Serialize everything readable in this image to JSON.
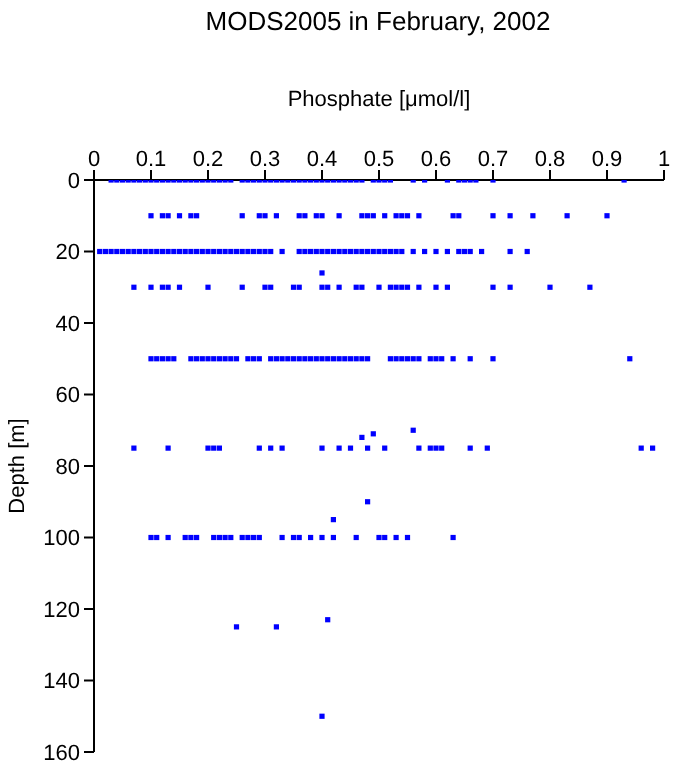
{
  "chart_data": {
    "type": "scatter",
    "title": "MODS2005 in February, 2002",
    "xlabel": "Phosphate [μmol/l]",
    "ylabel": "Depth [m]",
    "xlim": [
      0,
      1
    ],
    "xticks": [
      0,
      0.1,
      0.2,
      0.3,
      0.4,
      0.5,
      0.6,
      0.7,
      0.8,
      0.9,
      1
    ],
    "ylim": [
      160,
      0
    ],
    "yticks": [
      0,
      20,
      40,
      60,
      80,
      100,
      120,
      140,
      160
    ],
    "grid": false,
    "marker": "square",
    "series": [
      {
        "color": "#0000ff",
        "x": [
          0.03,
          0.04,
          0.05,
          0.06,
          0.07,
          0.08,
          0.09,
          0.1,
          0.11,
          0.12,
          0.13,
          0.14,
          0.15,
          0.16,
          0.17,
          0.18,
          0.19,
          0.2,
          0.21,
          0.22,
          0.23,
          0.24,
          0.26,
          0.27,
          0.28,
          0.29,
          0.3,
          0.31,
          0.32,
          0.33,
          0.34,
          0.35,
          0.36,
          0.37,
          0.38,
          0.39,
          0.4,
          0.41,
          0.42,
          0.43,
          0.44,
          0.45,
          0.46,
          0.47,
          0.49,
          0.5,
          0.51,
          0.52,
          0.56,
          0.58,
          0.62,
          0.64,
          0.65,
          0.66,
          0.67,
          0.7,
          0.93
        ],
        "values": [
          0,
          0,
          0,
          0,
          0,
          0,
          0,
          0,
          0,
          0,
          0,
          0,
          0,
          0,
          0,
          0,
          0,
          0,
          0,
          0,
          0,
          0,
          0,
          0,
          0,
          0,
          0,
          0,
          0,
          0,
          0,
          0,
          0,
          0,
          0,
          0,
          0,
          0,
          0,
          0,
          0,
          0,
          0,
          0,
          0,
          0,
          0,
          0,
          0,
          0,
          0,
          0,
          0,
          0,
          0,
          0,
          0
        ]
      },
      {
        "color": "#0000ff",
        "x": [
          0.1,
          0.12,
          0.13,
          0.15,
          0.17,
          0.18,
          0.26,
          0.29,
          0.3,
          0.32,
          0.36,
          0.37,
          0.39,
          0.4,
          0.43,
          0.47,
          0.48,
          0.49,
          0.51,
          0.53,
          0.54,
          0.55,
          0.57,
          0.63,
          0.64,
          0.7,
          0.73,
          0.77,
          0.83,
          0.9
        ],
        "values": [
          10,
          10,
          10,
          10,
          10,
          10,
          10,
          10,
          10,
          10,
          10,
          10,
          10,
          10,
          10,
          10,
          10,
          10,
          10,
          10,
          10,
          10,
          10,
          10,
          10,
          10,
          10,
          10,
          10,
          10
        ]
      },
      {
        "color": "#0000ff",
        "x": [
          0.01,
          0.02,
          0.03,
          0.04,
          0.05,
          0.06,
          0.07,
          0.08,
          0.09,
          0.1,
          0.11,
          0.12,
          0.13,
          0.14,
          0.15,
          0.16,
          0.17,
          0.18,
          0.19,
          0.2,
          0.21,
          0.22,
          0.23,
          0.24,
          0.25,
          0.26,
          0.27,
          0.28,
          0.29,
          0.3,
          0.31,
          0.33,
          0.36,
          0.37,
          0.38,
          0.39,
          0.4,
          0.41,
          0.42,
          0.43,
          0.44,
          0.45,
          0.46,
          0.47,
          0.48,
          0.49,
          0.5,
          0.51,
          0.52,
          0.53,
          0.54,
          0.56,
          0.58,
          0.6,
          0.62,
          0.64,
          0.65,
          0.66,
          0.68,
          0.73,
          0.76
        ],
        "values": [
          20,
          20,
          20,
          20,
          20,
          20,
          20,
          20,
          20,
          20,
          20,
          20,
          20,
          20,
          20,
          20,
          20,
          20,
          20,
          20,
          20,
          20,
          20,
          20,
          20,
          20,
          20,
          20,
          20,
          20,
          20,
          20,
          20,
          20,
          20,
          20,
          20,
          20,
          20,
          20,
          20,
          20,
          20,
          20,
          20,
          20,
          20,
          20,
          20,
          20,
          20,
          20,
          20,
          20,
          20,
          20,
          20,
          20,
          20,
          20,
          20
        ]
      },
      {
        "color": "#0000ff",
        "x": [
          0.07,
          0.1,
          0.12,
          0.13,
          0.15,
          0.2,
          0.26,
          0.3,
          0.31,
          0.35,
          0.36,
          0.4,
          0.41,
          0.43,
          0.46,
          0.47,
          0.5,
          0.52,
          0.53,
          0.54,
          0.55,
          0.57,
          0.6,
          0.62,
          0.7,
          0.73,
          0.8,
          0.87
        ],
        "values": [
          30,
          30,
          30,
          30,
          30,
          30,
          30,
          30,
          30,
          30,
          30,
          30,
          30,
          30,
          30,
          30,
          30,
          30,
          30,
          30,
          30,
          30,
          30,
          30,
          30,
          30,
          30,
          30
        ]
      },
      {
        "color": "#0000ff",
        "x": [
          0.1,
          0.11,
          0.12,
          0.13,
          0.14,
          0.17,
          0.18,
          0.19,
          0.2,
          0.21,
          0.22,
          0.23,
          0.24,
          0.25,
          0.27,
          0.28,
          0.29,
          0.31,
          0.32,
          0.33,
          0.34,
          0.35,
          0.36,
          0.37,
          0.38,
          0.39,
          0.4,
          0.41,
          0.42,
          0.43,
          0.44,
          0.45,
          0.46,
          0.47,
          0.48,
          0.52,
          0.53,
          0.54,
          0.55,
          0.56,
          0.57,
          0.59,
          0.6,
          0.61,
          0.63,
          0.66,
          0.7,
          0.94
        ],
        "values": [
          50,
          50,
          50,
          50,
          50,
          50,
          50,
          50,
          50,
          50,
          50,
          50,
          50,
          50,
          50,
          50,
          50,
          50,
          50,
          50,
          50,
          50,
          50,
          50,
          50,
          50,
          50,
          50,
          50,
          50,
          50,
          50,
          50,
          50,
          50,
          50,
          50,
          50,
          50,
          50,
          50,
          50,
          50,
          50,
          50,
          50,
          50,
          50
        ]
      },
      {
        "color": "#0000ff",
        "x": [
          0.07,
          0.13,
          0.2,
          0.21,
          0.22,
          0.29,
          0.31,
          0.33,
          0.4,
          0.43,
          0.45,
          0.48,
          0.51,
          0.57,
          0.59,
          0.6,
          0.61,
          0.66,
          0.69,
          0.96,
          0.98
        ],
        "values": [
          75,
          75,
          75,
          75,
          75,
          75,
          75,
          75,
          75,
          75,
          75,
          75,
          75,
          75,
          75,
          75,
          75,
          75,
          75,
          75,
          75
        ]
      },
      {
        "color": "#0000ff",
        "x": [
          0.1,
          0.11,
          0.13,
          0.16,
          0.17,
          0.18,
          0.21,
          0.22,
          0.23,
          0.24,
          0.26,
          0.27,
          0.28,
          0.29,
          0.33,
          0.35,
          0.36,
          0.38,
          0.4,
          0.42,
          0.46,
          0.5,
          0.51,
          0.53,
          0.55,
          0.63
        ],
        "values": [
          100,
          100,
          100,
          100,
          100,
          100,
          100,
          100,
          100,
          100,
          100,
          100,
          100,
          100,
          100,
          100,
          100,
          100,
          100,
          100,
          100,
          100,
          100,
          100,
          100,
          100
        ]
      },
      {
        "color": "#0000ff",
        "x": [
          0.4,
          0.47,
          0.49,
          0.56,
          0.48,
          0.42,
          0.25,
          0.32,
          0.41,
          0.4
        ],
        "values": [
          26,
          72,
          71,
          70,
          90,
          95,
          125,
          125,
          123,
          150
        ]
      }
    ]
  }
}
